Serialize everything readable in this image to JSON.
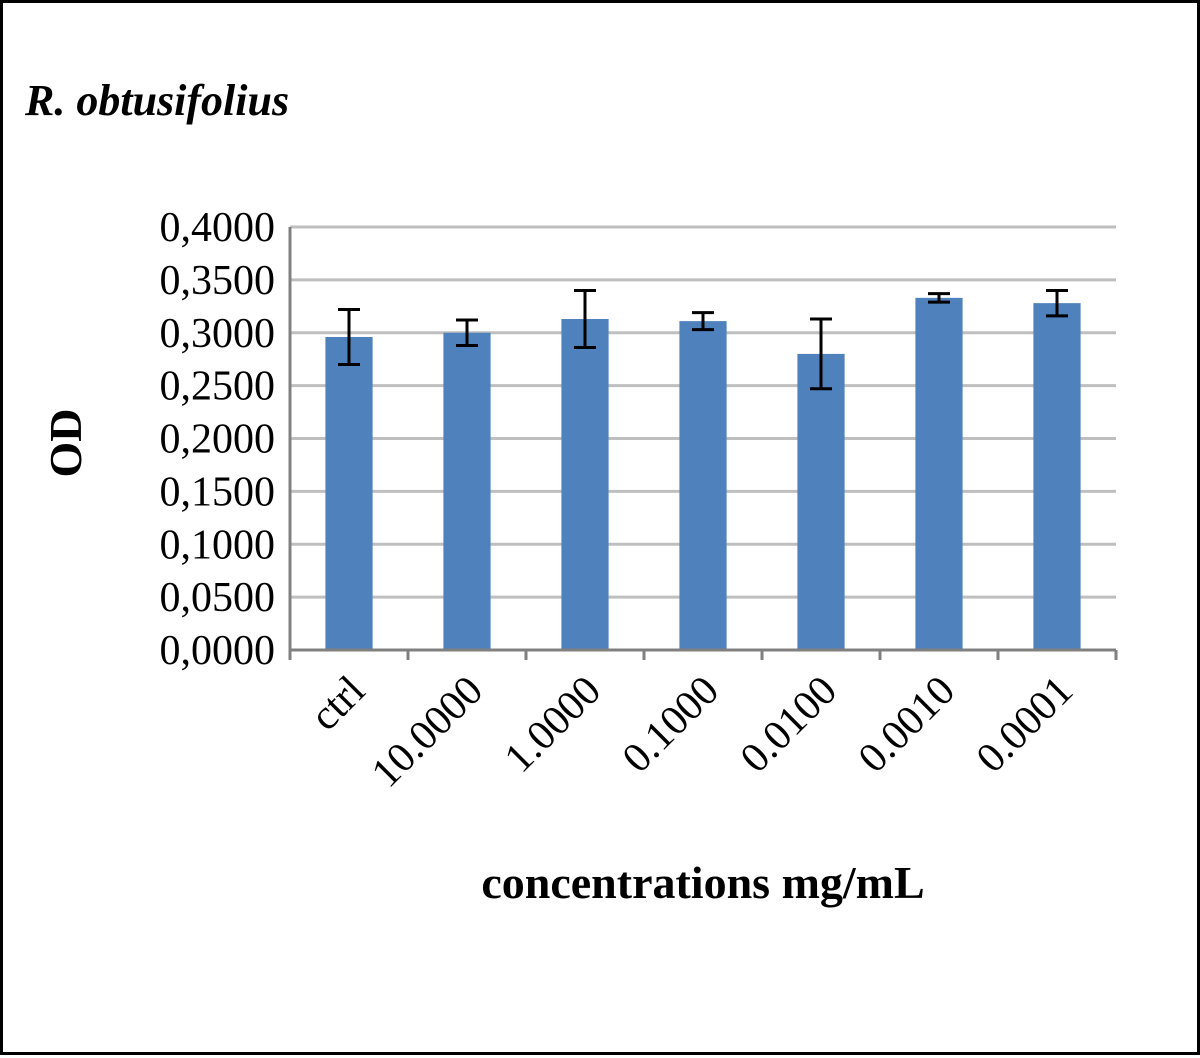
{
  "chart_data": {
    "type": "bar",
    "title": "R. obtusifolius",
    "xlabel": "concentrations mg/mL",
    "ylabel": "OD",
    "categories": [
      "ctrl",
      "10.0000",
      "1.0000",
      "0.1000",
      "0.0100",
      "0.0010",
      "0.0001"
    ],
    "series": [
      {
        "values": [
          0.296,
          0.3,
          0.313,
          0.311,
          0.28,
          0.333,
          0.328
        ],
        "errors": [
          0.026,
          0.012,
          0.027,
          0.008,
          0.033,
          0.004,
          0.012
        ]
      }
    ],
    "ylim": [
      0,
      0.4
    ],
    "y_ticks": [
      "0,0000",
      "0,0500",
      "0,1000",
      "0,1500",
      "0,2000",
      "0,2500",
      "0,3000",
      "0,3500",
      "0,4000"
    ],
    "grid": true,
    "legend": "none",
    "colors": {
      "bar": "#4F81BD",
      "gridline": "#BFBFBF",
      "axis": "#808080",
      "error_bar": "#000000",
      "text": "#000000"
    }
  }
}
